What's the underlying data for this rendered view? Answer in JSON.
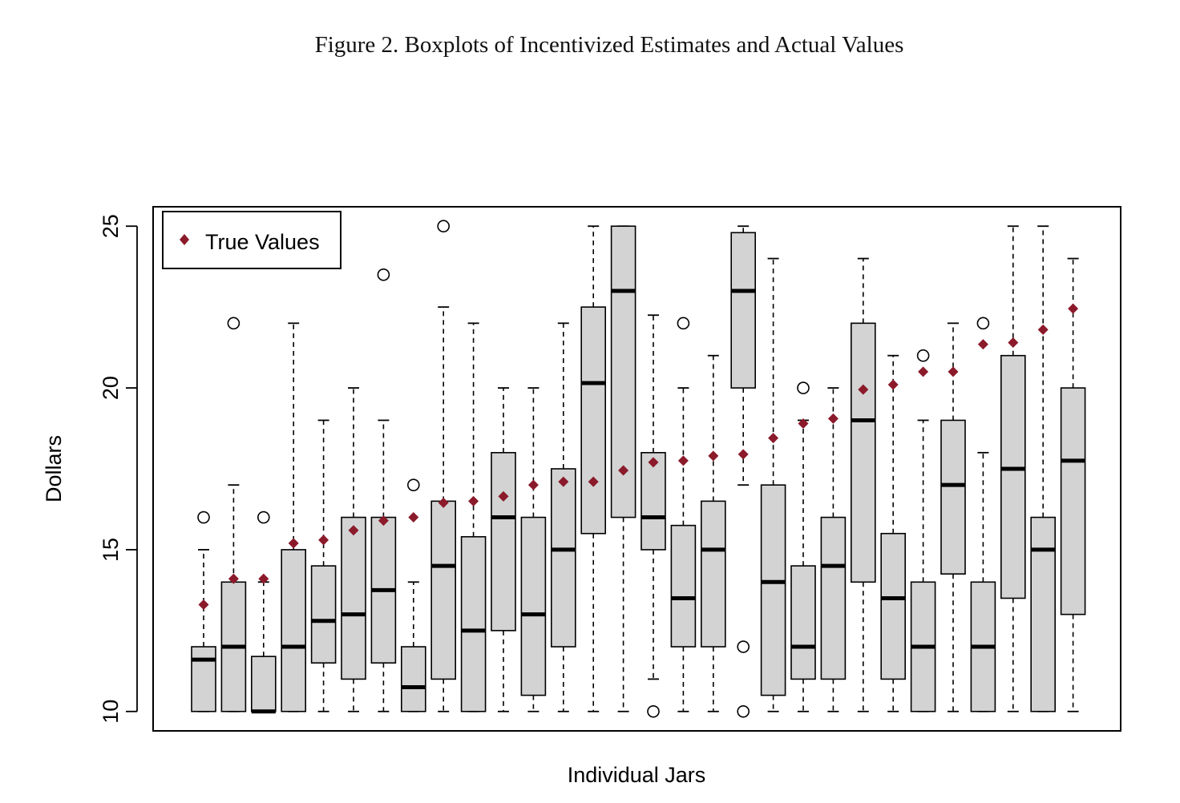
{
  "figure": {
    "title": "Figure 2. Boxplots of Incentivized Estimates and Actual Values"
  },
  "chart_data": {
    "type": "boxplot",
    "xlabel": "Individual Jars",
    "ylabel": "Dollars",
    "ylim": [
      9.4,
      25.6
    ],
    "yticks": [
      10,
      15,
      20,
      25
    ],
    "ytick_labels": [
      "10",
      "15",
      "20",
      "25"
    ],
    "legend": {
      "position": "top-left",
      "entries": [
        {
          "label": "True Values",
          "marker": "diamond"
        }
      ]
    },
    "colors": {
      "box_fill": "#d3d3d3",
      "true_value": "#8b1a2b",
      "frame": "#000000"
    },
    "boxes": [
      {
        "whisker_low": 10,
        "q1": 10,
        "median": 11.6,
        "q3": 12,
        "whisker_high": 15,
        "outliers": [
          16
        ],
        "true_value": 13.3
      },
      {
        "whisker_low": 10,
        "q1": 10,
        "median": 12,
        "q3": 14,
        "whisker_high": 17,
        "outliers": [
          22
        ],
        "true_value": 14.1
      },
      {
        "whisker_low": 10,
        "q1": 10,
        "median": 10,
        "q3": 11.7,
        "whisker_high": 14,
        "outliers": [
          16
        ],
        "true_value": 14.1
      },
      {
        "whisker_low": 10,
        "q1": 10,
        "median": 12,
        "q3": 15,
        "whisker_high": 22,
        "outliers": [],
        "true_value": 15.2
      },
      {
        "whisker_low": 10,
        "q1": 11.5,
        "median": 12.8,
        "q3": 14.5,
        "whisker_high": 19,
        "outliers": [],
        "true_value": 15.3
      },
      {
        "whisker_low": 10,
        "q1": 11,
        "median": 13,
        "q3": 16,
        "whisker_high": 20,
        "outliers": [],
        "true_value": 15.6
      },
      {
        "whisker_low": 10,
        "q1": 11.5,
        "median": 13.75,
        "q3": 16,
        "whisker_high": 19,
        "outliers": [
          23.5
        ],
        "true_value": 15.9
      },
      {
        "whisker_low": 10,
        "q1": 10,
        "median": 10.75,
        "q3": 12,
        "whisker_high": 14,
        "outliers": [
          17
        ],
        "true_value": 16
      },
      {
        "whisker_low": 10,
        "q1": 11,
        "median": 14.5,
        "q3": 16.5,
        "whisker_high": 22.5,
        "outliers": [
          25
        ],
        "true_value": 16.45
      },
      {
        "whisker_low": 10,
        "q1": 10,
        "median": 12.5,
        "q3": 15.4,
        "whisker_high": 22,
        "outliers": [],
        "true_value": 16.5
      },
      {
        "whisker_low": 10,
        "q1": 12.5,
        "median": 16,
        "q3": 18,
        "whisker_high": 20,
        "outliers": [],
        "true_value": 16.65
      },
      {
        "whisker_low": 10,
        "q1": 10.5,
        "median": 13,
        "q3": 16,
        "whisker_high": 20,
        "outliers": [],
        "true_value": 17
      },
      {
        "whisker_low": 10,
        "q1": 12,
        "median": 15,
        "q3": 17.5,
        "whisker_high": 22,
        "outliers": [],
        "true_value": 17.1
      },
      {
        "whisker_low": 10,
        "q1": 15.5,
        "median": 20.15,
        "q3": 22.5,
        "whisker_high": 25,
        "outliers": [],
        "true_value": 17.1
      },
      {
        "whisker_low": 10,
        "q1": 16,
        "median": 23,
        "q3": 25,
        "whisker_high": 25,
        "outliers": [],
        "true_value": 17.45
      },
      {
        "whisker_low": 11,
        "q1": 15,
        "median": 16,
        "q3": 18,
        "whisker_high": 22.25,
        "outliers": [
          10
        ],
        "true_value": 17.7
      },
      {
        "whisker_low": 10,
        "q1": 12,
        "median": 13.5,
        "q3": 15.75,
        "whisker_high": 20,
        "outliers": [
          22
        ],
        "true_value": 17.75
      },
      {
        "whisker_low": 10,
        "q1": 12,
        "median": 15,
        "q3": 16.5,
        "whisker_high": 21,
        "outliers": [],
        "true_value": 17.9
      },
      {
        "whisker_low": 17,
        "q1": 20,
        "median": 23,
        "q3": 24.8,
        "whisker_high": 25,
        "outliers": [
          12,
          10
        ],
        "true_value": 17.95
      },
      {
        "whisker_low": 10,
        "q1": 10.5,
        "median": 14,
        "q3": 17,
        "whisker_high": 24,
        "outliers": [],
        "true_value": 18.45
      },
      {
        "whisker_low": 10,
        "q1": 11,
        "median": 12,
        "q3": 14.5,
        "whisker_high": 19,
        "outliers": [
          20
        ],
        "true_value": 18.9
      },
      {
        "whisker_low": 10,
        "q1": 11,
        "median": 14.5,
        "q3": 16,
        "whisker_high": 20,
        "outliers": [],
        "true_value": 19.05
      },
      {
        "whisker_low": 10,
        "q1": 14,
        "median": 19,
        "q3": 22,
        "whisker_high": 24,
        "outliers": [],
        "true_value": 19.95
      },
      {
        "whisker_low": 10,
        "q1": 11,
        "median": 13.5,
        "q3": 15.5,
        "whisker_high": 21,
        "outliers": [],
        "true_value": 20.1
      },
      {
        "whisker_low": 10,
        "q1": 10,
        "median": 12,
        "q3": 14,
        "whisker_high": 19,
        "outliers": [
          21
        ],
        "true_value": 20.5
      },
      {
        "whisker_low": 10,
        "q1": 14.25,
        "median": 17,
        "q3": 19,
        "whisker_high": 22,
        "outliers": [],
        "true_value": 20.5
      },
      {
        "whisker_low": 10,
        "q1": 10,
        "median": 12,
        "q3": 14,
        "whisker_high": 18,
        "outliers": [
          22
        ],
        "true_value": 21.35
      },
      {
        "whisker_low": 10,
        "q1": 13.5,
        "median": 17.5,
        "q3": 21,
        "whisker_high": 25,
        "outliers": [],
        "true_value": 21.4
      },
      {
        "whisker_low": 10,
        "q1": 10,
        "median": 15,
        "q3": 16,
        "whisker_high": 25,
        "outliers": [],
        "true_value": 21.8
      },
      {
        "whisker_low": 10,
        "q1": 13,
        "median": 17.75,
        "q3": 20,
        "whisker_high": 24,
        "outliers": [],
        "true_value": 22.45
      }
    ]
  }
}
